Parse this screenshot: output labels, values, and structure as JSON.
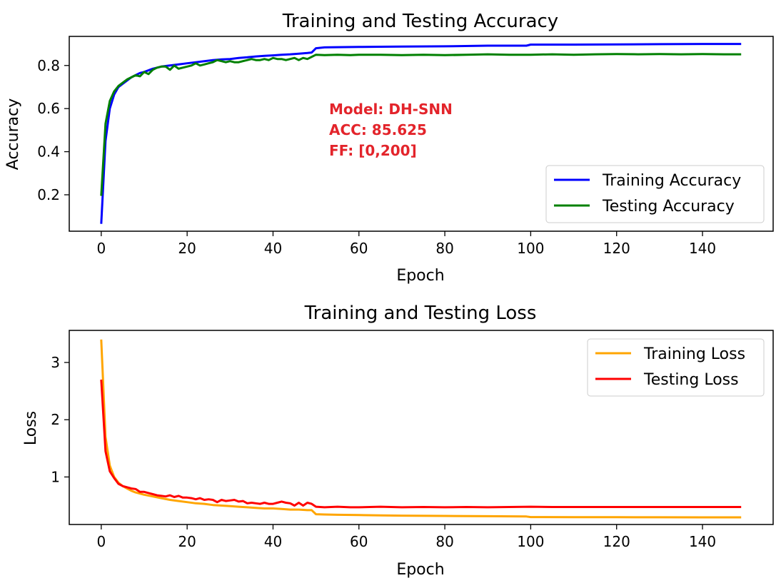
{
  "chart_data": [
    {
      "type": "line",
      "title": "Training and Testing Accuracy",
      "xlabel": "Epoch",
      "ylabel": "Accuracy",
      "xlim": [
        -7.45,
        156.45
      ],
      "ylim": [
        0.031,
        0.935
      ],
      "xticks": [
        0,
        20,
        40,
        60,
        80,
        100,
        120,
        140
      ],
      "yticks": [
        0.2,
        0.4,
        0.6,
        0.8
      ],
      "xtick_labels": [
        "0",
        "20",
        "40",
        "60",
        "80",
        "100",
        "120",
        "140"
      ],
      "ytick_labels": [
        "0.2",
        "0.4",
        "0.6",
        "0.8"
      ],
      "legend_position": "lower-right",
      "grid": false,
      "annotation": [
        "Model: DH-SNN",
        "ACC: 85.625",
        "FF: [0,200]"
      ],
      "annotation_color": "#e3242b",
      "series": [
        {
          "name": "Training Accuracy",
          "color": "#0000ff",
          "x": [
            0,
            1,
            2,
            3,
            4,
            5,
            6,
            7,
            8,
            9,
            10,
            12,
            14,
            16,
            18,
            20,
            22,
            24,
            26,
            28,
            30,
            32,
            34,
            36,
            38,
            40,
            42,
            44,
            46,
            48,
            49,
            50,
            52,
            55,
            60,
            65,
            70,
            80,
            90,
            99,
            100,
            110,
            120,
            130,
            140,
            149
          ],
          "values": [
            0.065,
            0.45,
            0.6,
            0.665,
            0.7,
            0.715,
            0.73,
            0.745,
            0.755,
            0.765,
            0.77,
            0.785,
            0.795,
            0.8,
            0.805,
            0.81,
            0.815,
            0.82,
            0.825,
            0.828,
            0.83,
            0.835,
            0.838,
            0.842,
            0.845,
            0.847,
            0.85,
            0.852,
            0.855,
            0.858,
            0.86,
            0.88,
            0.884,
            0.885,
            0.886,
            0.887,
            0.888,
            0.889,
            0.892,
            0.892,
            0.897,
            0.897,
            0.898,
            0.899,
            0.9,
            0.9
          ]
        },
        {
          "name": "Testing Accuracy",
          "color": "#008000",
          "x": [
            0,
            1,
            2,
            3,
            4,
            5,
            6,
            7,
            8,
            9,
            10,
            11,
            12,
            13,
            14,
            15,
            16,
            17,
            18,
            19,
            20,
            21,
            22,
            23,
            24,
            25,
            26,
            27,
            28,
            29,
            30,
            31,
            32,
            33,
            34,
            35,
            36,
            37,
            38,
            39,
            40,
            41,
            42,
            43,
            44,
            45,
            46,
            47,
            48,
            49,
            50,
            52,
            55,
            58,
            60,
            65,
            70,
            75,
            80,
            85,
            90,
            95,
            100,
            105,
            110,
            115,
            120,
            125,
            130,
            135,
            140,
            145,
            149
          ],
          "values": [
            0.195,
            0.53,
            0.635,
            0.68,
            0.705,
            0.72,
            0.735,
            0.745,
            0.755,
            0.75,
            0.77,
            0.76,
            0.78,
            0.79,
            0.795,
            0.795,
            0.78,
            0.8,
            0.785,
            0.79,
            0.795,
            0.8,
            0.81,
            0.8,
            0.805,
            0.81,
            0.815,
            0.825,
            0.82,
            0.815,
            0.82,
            0.815,
            0.815,
            0.82,
            0.825,
            0.83,
            0.825,
            0.825,
            0.83,
            0.825,
            0.835,
            0.83,
            0.83,
            0.825,
            0.83,
            0.835,
            0.825,
            0.835,
            0.83,
            0.84,
            0.85,
            0.848,
            0.85,
            0.848,
            0.85,
            0.85,
            0.848,
            0.85,
            0.848,
            0.85,
            0.852,
            0.85,
            0.85,
            0.852,
            0.85,
            0.852,
            0.853,
            0.852,
            0.853,
            0.852,
            0.853,
            0.852,
            0.852
          ]
        }
      ]
    },
    {
      "type": "line",
      "title": "Training and Testing Loss",
      "xlabel": "Epoch",
      "ylabel": "Loss",
      "xlim": [
        -7.45,
        156.45
      ],
      "ylim": [
        0.17,
        3.56
      ],
      "xticks": [
        0,
        20,
        40,
        60,
        80,
        100,
        120,
        140
      ],
      "yticks": [
        1,
        2,
        3
      ],
      "xtick_labels": [
        "0",
        "20",
        "40",
        "60",
        "80",
        "100",
        "120",
        "140"
      ],
      "ytick_labels": [
        "1",
        "2",
        "3"
      ],
      "legend_position": "upper-right",
      "grid": false,
      "series": [
        {
          "name": "Training Loss",
          "color": "#ffa500",
          "x": [
            0,
            1,
            2,
            3,
            4,
            5,
            6,
            7,
            8,
            9,
            10,
            12,
            14,
            16,
            18,
            20,
            22,
            24,
            26,
            28,
            30,
            32,
            34,
            36,
            38,
            40,
            42,
            44,
            46,
            48,
            49,
            50,
            52,
            55,
            60,
            65,
            70,
            80,
            90,
            99,
            100,
            110,
            120,
            130,
            140,
            149
          ],
          "values": [
            3.4,
            1.7,
            1.2,
            1.0,
            0.9,
            0.84,
            0.8,
            0.76,
            0.73,
            0.71,
            0.69,
            0.66,
            0.63,
            0.6,
            0.58,
            0.56,
            0.54,
            0.53,
            0.51,
            0.5,
            0.49,
            0.48,
            0.47,
            0.46,
            0.45,
            0.45,
            0.44,
            0.43,
            0.43,
            0.42,
            0.42,
            0.35,
            0.345,
            0.34,
            0.335,
            0.33,
            0.325,
            0.32,
            0.315,
            0.31,
            0.3,
            0.298,
            0.297,
            0.296,
            0.295,
            0.295
          ]
        },
        {
          "name": "Testing Loss",
          "color": "#ff0000",
          "x": [
            0,
            1,
            2,
            3,
            4,
            5,
            6,
            7,
            8,
            9,
            10,
            11,
            12,
            13,
            14,
            15,
            16,
            17,
            18,
            19,
            20,
            21,
            22,
            23,
            24,
            25,
            26,
            27,
            28,
            29,
            30,
            31,
            32,
            33,
            34,
            35,
            36,
            37,
            38,
            39,
            40,
            41,
            42,
            43,
            44,
            45,
            46,
            47,
            48,
            49,
            50,
            52,
            55,
            58,
            60,
            65,
            70,
            75,
            80,
            85,
            90,
            95,
            100,
            105,
            110,
            115,
            120,
            125,
            130,
            135,
            140,
            145,
            149
          ],
          "values": [
            2.7,
            1.45,
            1.1,
            0.98,
            0.88,
            0.84,
            0.82,
            0.8,
            0.79,
            0.74,
            0.74,
            0.72,
            0.7,
            0.68,
            0.67,
            0.66,
            0.68,
            0.65,
            0.67,
            0.64,
            0.64,
            0.63,
            0.61,
            0.63,
            0.6,
            0.61,
            0.6,
            0.56,
            0.6,
            0.58,
            0.59,
            0.6,
            0.57,
            0.58,
            0.54,
            0.55,
            0.54,
            0.53,
            0.55,
            0.53,
            0.53,
            0.55,
            0.57,
            0.55,
            0.54,
            0.5,
            0.55,
            0.5,
            0.55,
            0.53,
            0.48,
            0.47,
            0.48,
            0.47,
            0.47,
            0.48,
            0.47,
            0.475,
            0.47,
            0.475,
            0.47,
            0.475,
            0.48,
            0.475,
            0.475,
            0.475,
            0.475,
            0.475,
            0.475,
            0.475,
            0.475,
            0.475,
            0.475
          ]
        }
      ]
    }
  ]
}
